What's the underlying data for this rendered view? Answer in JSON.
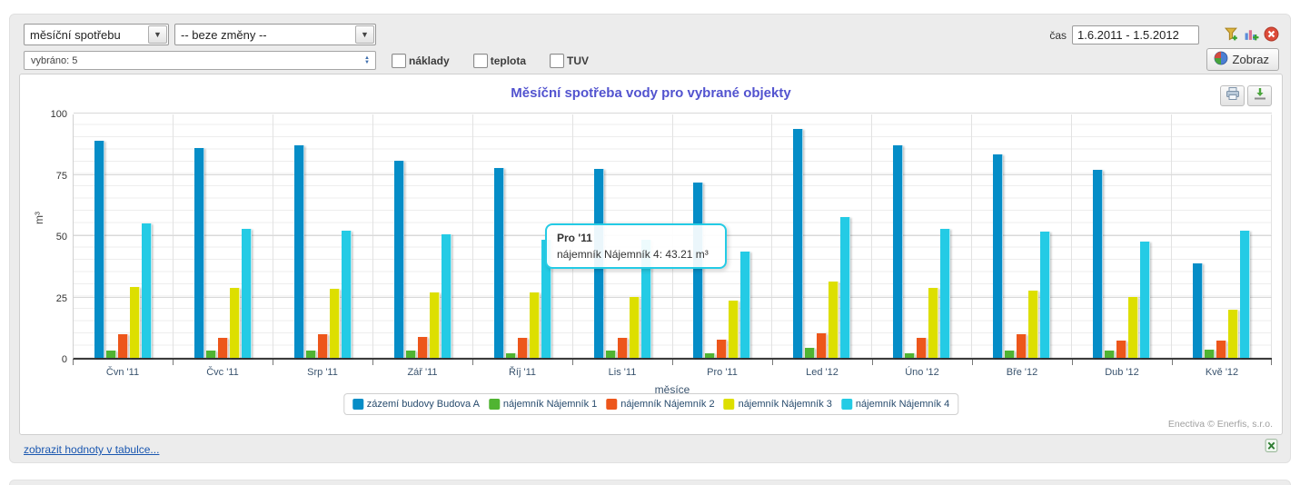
{
  "toolbar": {
    "metric_select": "měsíční spotřebu",
    "change_select": "-- beze změny --",
    "objects_select": "vybráno: 5",
    "checkboxes": [
      {
        "label": "náklady",
        "checked": false
      },
      {
        "label": "teplota",
        "checked": false
      },
      {
        "label": "TUV",
        "checked": false
      }
    ],
    "time_label": "čas",
    "time_value": "1.6.2011 - 1.5.2012",
    "show_button": "Zobraz"
  },
  "icons": {
    "filter_add": "funnel-with-plus",
    "chart_add": "bar-chart-with-plus",
    "close": "red-circle-x",
    "pie_chart": "pie",
    "print": "printer",
    "download": "green-down-arrow",
    "excel_export": "spreadsheet",
    "select_arrow": "▾",
    "multiselect_arrows": "▲▼"
  },
  "chart_data": {
    "type": "bar",
    "title": "Měsíční spotřeba vody pro vybrané objekty",
    "title_color": "#5253cf",
    "xlabel": "měsíce",
    "ylabel": "m³",
    "ylim": [
      0,
      100
    ],
    "yticks": [
      0,
      25,
      50,
      75,
      100
    ],
    "grid": true,
    "legend_position": "bottom",
    "categories": [
      "Čvn '11",
      "Čvc '11",
      "Srp '11",
      "Zář '11",
      "Říj '11",
      "Lis '11",
      "Pro '11",
      "Led '12",
      "Úno '12",
      "Bře '12",
      "Dub '12",
      "Kvě '12"
    ],
    "series": [
      {
        "name": "zázemí budovy Budova A",
        "color": "#058DC7",
        "values": [
          88.5,
          85.5,
          86.5,
          80.5,
          77.5,
          77,
          71.5,
          93.5,
          86.5,
          83,
          76.5,
          38.5
        ]
      },
      {
        "name": "nájemník Nájemník 1",
        "color": "#50B432",
        "values": [
          3,
          3,
          3,
          3,
          2,
          3,
          2,
          4,
          2,
          3,
          3,
          3.5
        ]
      },
      {
        "name": "nájemník Nájemník 2",
        "color": "#ED561B",
        "values": [
          9.5,
          8,
          9.5,
          8.5,
          8,
          8,
          7.5,
          10,
          8,
          9.5,
          7,
          7
        ]
      },
      {
        "name": "nájemník Nájemník 3",
        "color": "#DDDF00",
        "values": [
          29,
          28.5,
          28,
          26.5,
          26.5,
          25,
          23.5,
          31,
          28.5,
          27.5,
          25,
          19.5
        ]
      },
      {
        "name": "nájemník Nájemník 4",
        "color": "#24CBE5",
        "values": [
          55,
          52.5,
          52,
          50.5,
          48,
          48,
          43.21,
          57.5,
          52.5,
          51.5,
          47.5,
          52
        ]
      }
    ],
    "tooltip": {
      "category": "Pro '11",
      "line": "nájemník Nájemník 4: 43.21 m³"
    }
  },
  "footer": {
    "table_link": "zobrazit hodnoty v tabulce...",
    "copyright": "Enectiva © Enerfis, s.r.o."
  }
}
